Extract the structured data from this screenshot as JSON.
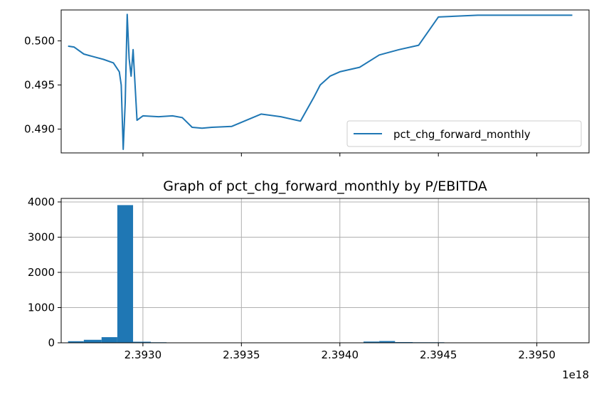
{
  "chart_data": [
    {
      "type": "line",
      "title": "",
      "xlabel": "",
      "ylabel": "",
      "ylim": [
        0.4873,
        0.5035
      ],
      "yticks": [
        0.49,
        0.495,
        0.5
      ],
      "ytick_labels": [
        "0.490",
        "0.495",
        "0.500"
      ],
      "x_is_shared": true,
      "grid": false,
      "legend": {
        "position": "lower-right",
        "entries": [
          "pct_chg_forward_monthly"
        ]
      },
      "colors": {
        "line": "#1f77b4"
      },
      "series": [
        {
          "name": "pct_chg_forward_monthly",
          "x": [
            2.39262,
            2.39265,
            2.3927,
            2.39275,
            2.3928,
            2.39285,
            2.39288,
            2.39289,
            2.3929,
            2.39291,
            2.39292,
            2.39293,
            2.39294,
            2.39295,
            2.39297,
            2.393,
            2.39308,
            2.39315,
            2.3932,
            2.39325,
            2.3933,
            2.39335,
            2.39345,
            2.3936,
            2.3937,
            2.3938,
            2.39387,
            2.3939,
            2.39395,
            2.394,
            2.3941,
            2.3942,
            2.3943,
            2.3944,
            2.3945,
            2.3947,
            2.395,
            2.39518
          ],
          "values": [
            0.4994,
            0.4993,
            0.4985,
            0.4982,
            0.4979,
            0.4975,
            0.4965,
            0.495,
            0.4877,
            0.493,
            0.503,
            0.498,
            0.496,
            0.499,
            0.491,
            0.4915,
            0.4914,
            0.4915,
            0.4913,
            0.4902,
            0.4901,
            0.4902,
            0.4903,
            0.4917,
            0.4914,
            0.4909,
            0.4937,
            0.495,
            0.496,
            0.4965,
            0.497,
            0.4984,
            0.499,
            0.4995,
            0.5027,
            0.5029,
            0.5029,
            0.5029
          ]
        }
      ]
    },
    {
      "type": "bar",
      "title": "Graph of pct_chg_forward_monthly by P/EBITDA",
      "xlabel": "",
      "ylabel": "",
      "x_offset_label": "1e18",
      "xlim": [
        2.392585,
        2.395265
      ],
      "ylim": [
        0,
        4100
      ],
      "xticks": [
        2.393,
        2.3935,
        2.394,
        2.3945,
        2.395
      ],
      "xtick_labels": [
        "2.3930",
        "2.3935",
        "2.3940",
        "2.3945",
        "2.3950"
      ],
      "yticks": [
        0,
        1000,
        2000,
        3000,
        4000
      ],
      "ytick_labels": [
        "0",
        "1000",
        "2000",
        "3000",
        "4000"
      ],
      "grid": true,
      "colors": {
        "bar": "#1f77b4"
      },
      "bins": [
        {
          "x0": 2.39262,
          "x1": 2.3927,
          "value": 45
        },
        {
          "x0": 2.3927,
          "x1": 2.39279,
          "value": 85
        },
        {
          "x0": 2.39279,
          "x1": 2.39287,
          "value": 160
        },
        {
          "x0": 2.39287,
          "x1": 2.39295,
          "value": 3910
        },
        {
          "x0": 2.39295,
          "x1": 2.39304,
          "value": 30
        },
        {
          "x0": 2.39304,
          "x1": 2.39312,
          "value": 15
        },
        {
          "x0": 2.39312,
          "x1": 2.3932,
          "value": 8
        },
        {
          "x0": 2.3932,
          "x1": 2.39329,
          "value": 8
        },
        {
          "x0": 2.39329,
          "x1": 2.39337,
          "value": 6
        },
        {
          "x0": 2.39337,
          "x1": 2.39345,
          "value": 6
        },
        {
          "x0": 2.39345,
          "x1": 2.39354,
          "value": 6
        },
        {
          "x0": 2.39354,
          "x1": 2.39362,
          "value": 6
        },
        {
          "x0": 2.39362,
          "x1": 2.3937,
          "value": 6
        },
        {
          "x0": 2.3937,
          "x1": 2.39379,
          "value": 6
        },
        {
          "x0": 2.39379,
          "x1": 2.39387,
          "value": 6
        },
        {
          "x0": 2.39387,
          "x1": 2.39395,
          "value": 6
        },
        {
          "x0": 2.39395,
          "x1": 2.39403,
          "value": 6
        },
        {
          "x0": 2.39403,
          "x1": 2.39412,
          "value": 10
        },
        {
          "x0": 2.39412,
          "x1": 2.3942,
          "value": 35
        },
        {
          "x0": 2.3942,
          "x1": 2.39428,
          "value": 50
        },
        {
          "x0": 2.39428,
          "x1": 2.39437,
          "value": 20
        },
        {
          "x0": 2.39437,
          "x1": 2.39445,
          "value": 15
        },
        {
          "x0": 2.39445,
          "x1": 2.39453,
          "value": 15
        },
        {
          "x0": 2.39453,
          "x1": 2.39462,
          "value": 8
        },
        {
          "x0": 2.39462,
          "x1": 2.3947,
          "value": 5
        },
        {
          "x0": 2.3947,
          "x1": 2.39478,
          "value": 4
        },
        {
          "x0": 2.39478,
          "x1": 2.39487,
          "value": 4
        },
        {
          "x0": 2.39487,
          "x1": 2.39495,
          "value": 4
        },
        {
          "x0": 2.39495,
          "x1": 2.39503,
          "value": 4
        },
        {
          "x0": 2.39503,
          "x1": 2.39512,
          "value": 3
        },
        {
          "x0": 2.39512,
          "x1": 2.39518,
          "value": 3
        }
      ]
    }
  ]
}
